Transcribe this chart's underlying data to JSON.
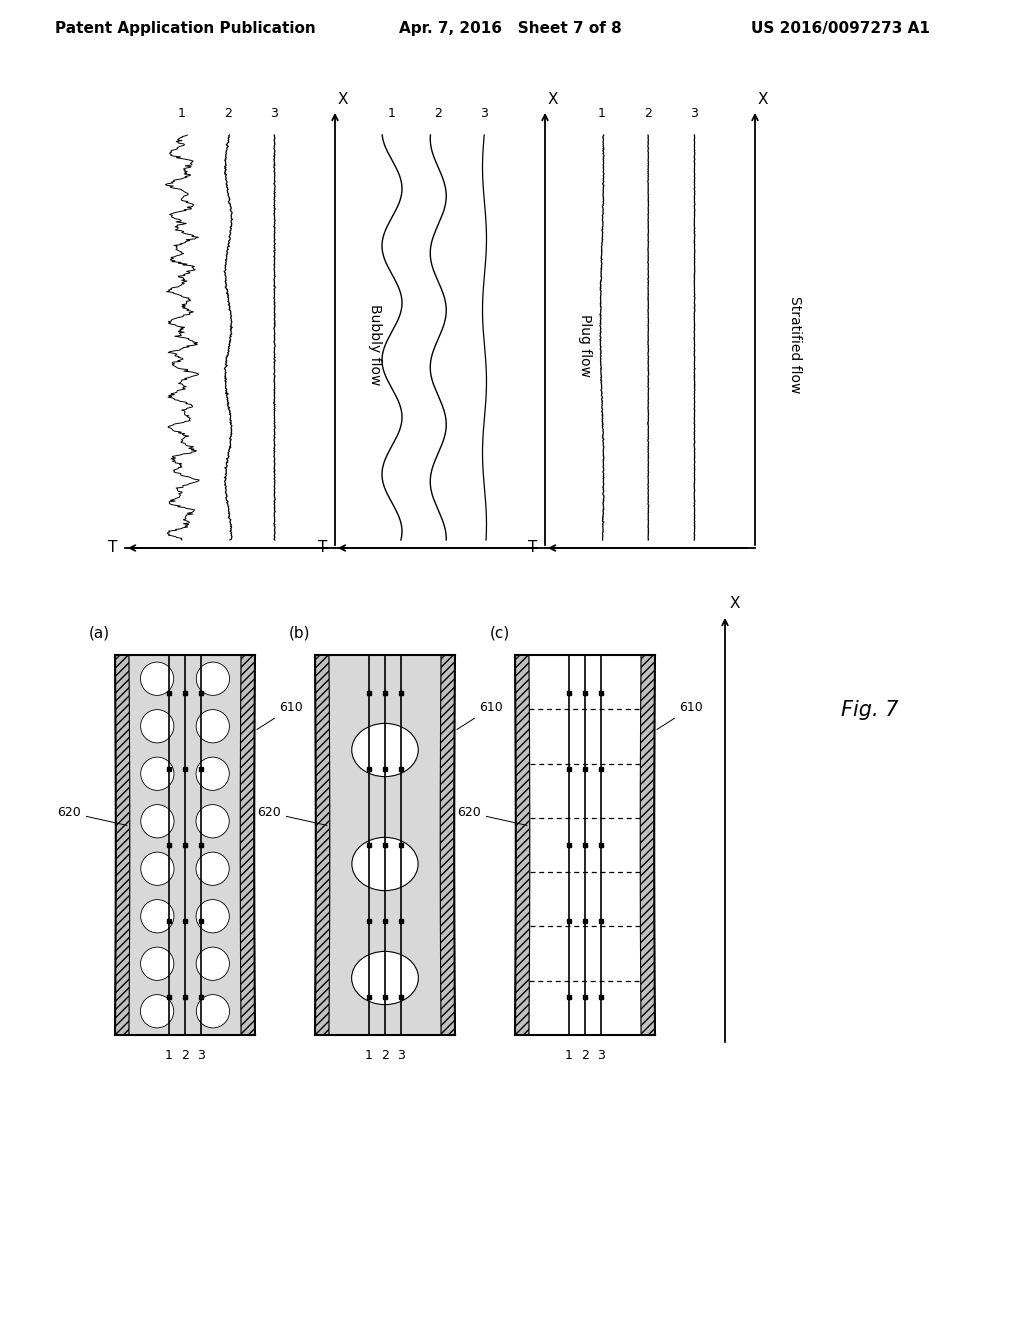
{
  "bg_color": "#ffffff",
  "header_left": "Patent Application Publication",
  "header_center": "Apr. 7, 2016   Sheet 7 of 8",
  "header_right": "US 2016/0097273 A1",
  "fig_label": "Fig. 7",
  "flow_labels": [
    "Bubbly flow",
    "Plug flow",
    "Stratified flow"
  ],
  "pipe_labels": [
    "(a)",
    "(b)",
    "(c)"
  ],
  "label_610": "610",
  "label_620": "620"
}
